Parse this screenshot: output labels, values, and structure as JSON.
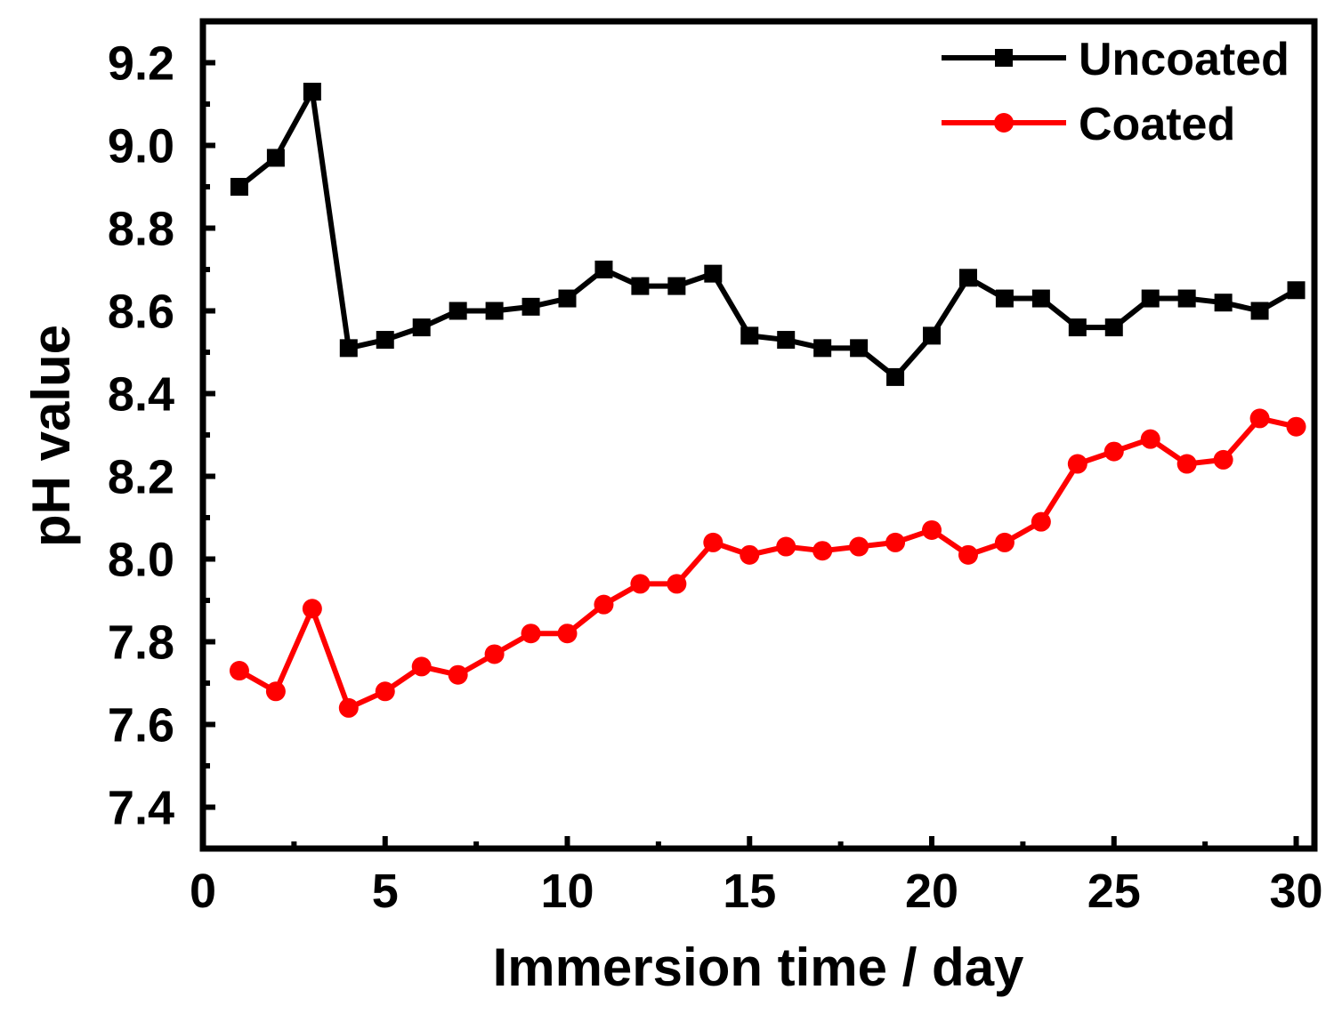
{
  "chart_data": {
    "type": "line",
    "title": "",
    "xlabel": "Immersion time / day",
    "ylabel": "pH value",
    "xlim": [
      0,
      30.5
    ],
    "ylim": [
      7.3,
      9.3
    ],
    "x_ticks": [
      0,
      5,
      10,
      15,
      20,
      25,
      30
    ],
    "x_tick_labels": [
      "0",
      "5",
      "10",
      "15",
      "20",
      "25",
      "30"
    ],
    "y_ticks": [
      7.4,
      7.6,
      7.8,
      8.0,
      8.2,
      8.4,
      8.6,
      8.8,
      9.0,
      9.2
    ],
    "y_tick_labels": [
      "7.4",
      "7.6",
      "7.8",
      "8.0",
      "8.2",
      "8.4",
      "8.6",
      "8.8",
      "9.0",
      "9.2"
    ],
    "grid": false,
    "legend_position": "top-right",
    "x": [
      1,
      2,
      3,
      4,
      5,
      6,
      7,
      8,
      9,
      10,
      11,
      12,
      13,
      14,
      15,
      16,
      17,
      18,
      19,
      20,
      21,
      22,
      23,
      24,
      25,
      26,
      27,
      28,
      29,
      30
    ],
    "series": [
      {
        "name": "Uncoated",
        "color": "#000000",
        "marker": "square",
        "values": [
          8.9,
          8.97,
          9.13,
          8.51,
          8.53,
          8.56,
          8.6,
          8.6,
          8.61,
          8.63,
          8.7,
          8.66,
          8.66,
          8.69,
          8.54,
          8.53,
          8.51,
          8.51,
          8.44,
          8.54,
          8.68,
          8.63,
          8.63,
          8.56,
          8.56,
          8.63,
          8.63,
          8.62,
          8.6,
          8.65
        ]
      },
      {
        "name": "Coated",
        "color": "#ff0000",
        "marker": "circle",
        "values": [
          7.73,
          7.68,
          7.88,
          7.64,
          7.68,
          7.74,
          7.72,
          7.77,
          7.82,
          7.82,
          7.89,
          7.94,
          7.94,
          8.04,
          8.01,
          8.03,
          8.02,
          8.03,
          8.04,
          8.07,
          8.01,
          8.04,
          8.09,
          8.23,
          8.26,
          8.29,
          8.23,
          8.24,
          8.34,
          8.32
        ]
      }
    ]
  }
}
